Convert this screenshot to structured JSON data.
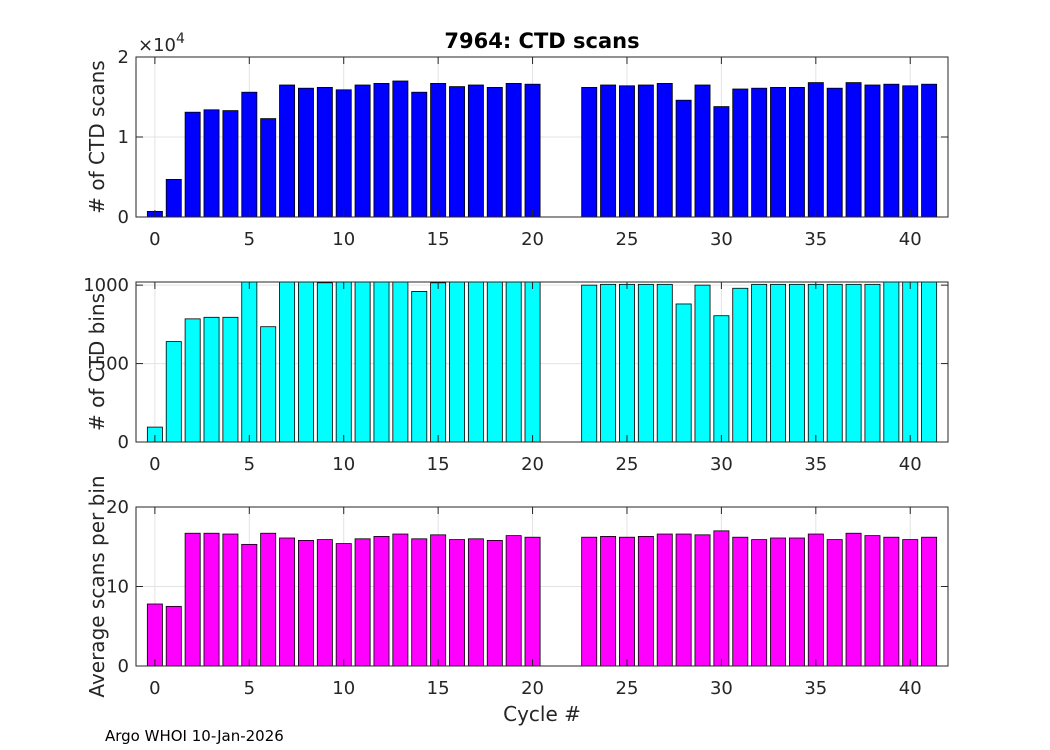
{
  "footer": "Argo WHOI 10-Jan-2026",
  "chart_data": [
    {
      "type": "bar",
      "title": "7964: CTD scans",
      "ylabel": "# of CTD scans",
      "xlabel": "",
      "color": "#0000ff",
      "exponent_label": "×10",
      "exponent_power": "4",
      "x": [
        0,
        1,
        2,
        3,
        4,
        5,
        6,
        7,
        8,
        9,
        10,
        11,
        12,
        13,
        14,
        15,
        16,
        17,
        18,
        19,
        20,
        23,
        24,
        25,
        26,
        27,
        28,
        29,
        30,
        31,
        32,
        33,
        34,
        35,
        36,
        37,
        38,
        39,
        40,
        41
      ],
      "values": [
        0.07,
        0.47,
        1.31,
        1.34,
        1.33,
        1.56,
        1.23,
        1.65,
        1.61,
        1.62,
        1.59,
        1.65,
        1.67,
        1.7,
        1.56,
        1.67,
        1.63,
        1.65,
        1.62,
        1.67,
        1.66,
        1.62,
        1.65,
        1.64,
        1.65,
        1.67,
        1.46,
        1.65,
        1.38,
        1.6,
        1.61,
        1.62,
        1.62,
        1.68,
        1.61,
        1.68,
        1.65,
        1.66,
        1.64,
        1.66
      ],
      "xlim": [
        -1,
        42
      ],
      "ylim": [
        0,
        2
      ],
      "yticks": [
        0,
        1,
        2
      ],
      "ytick_labels": [
        "0",
        "1",
        "2"
      ],
      "xticks": [
        0,
        5,
        10,
        15,
        20,
        25,
        30,
        35,
        40
      ],
      "xtick_labels": [
        "0",
        "5",
        "10",
        "15",
        "20",
        "25",
        "30",
        "35",
        "40"
      ],
      "grid": true
    },
    {
      "type": "bar",
      "title": "",
      "ylabel": "# of CTD bins",
      "xlabel": "",
      "color": "#00ffff",
      "x": [
        0,
        1,
        2,
        3,
        4,
        5,
        6,
        7,
        8,
        9,
        10,
        11,
        12,
        13,
        14,
        15,
        16,
        17,
        18,
        19,
        20,
        23,
        24,
        25,
        26,
        27,
        28,
        29,
        30,
        31,
        32,
        33,
        34,
        35,
        36,
        37,
        38,
        39,
        40,
        41
      ],
      "values": [
        95,
        640,
        785,
        795,
        795,
        1020,
        735,
        1020,
        1020,
        1015,
        1020,
        1020,
        1020,
        1020,
        960,
        1015,
        1020,
        1020,
        1020,
        1020,
        1020,
        1000,
        1005,
        1005,
        1005,
        1005,
        880,
        1000,
        805,
        980,
        1005,
        1005,
        1005,
        1005,
        1005,
        1005,
        1005,
        1020,
        1020,
        1020
      ],
      "xlim": [
        -1,
        42
      ],
      "ylim": [
        0,
        1020
      ],
      "yticks": [
        0,
        500,
        1000
      ],
      "ytick_labels": [
        "0",
        "500",
        "1000"
      ],
      "xticks": [
        0,
        5,
        10,
        15,
        20,
        25,
        30,
        35,
        40
      ],
      "xtick_labels": [
        "0",
        "5",
        "10",
        "15",
        "20",
        "25",
        "30",
        "35",
        "40"
      ],
      "grid": true
    },
    {
      "type": "bar",
      "title": "",
      "ylabel": "Average scans per bin",
      "xlabel": "Cycle #",
      "color": "#ff00ff",
      "x": [
        0,
        1,
        2,
        3,
        4,
        5,
        6,
        7,
        8,
        9,
        10,
        11,
        12,
        13,
        14,
        15,
        16,
        17,
        18,
        19,
        20,
        23,
        24,
        25,
        26,
        27,
        28,
        29,
        30,
        31,
        32,
        33,
        34,
        35,
        36,
        37,
        38,
        39,
        40,
        41
      ],
      "values": [
        7.8,
        7.5,
        16.7,
        16.7,
        16.6,
        15.3,
        16.7,
        16.1,
        15.8,
        15.9,
        15.4,
        16.0,
        16.3,
        16.6,
        16.0,
        16.5,
        15.9,
        16.0,
        15.8,
        16.4,
        16.2,
        16.2,
        16.3,
        16.2,
        16.3,
        16.6,
        16.6,
        16.5,
        17.0,
        16.2,
        15.9,
        16.1,
        16.1,
        16.6,
        15.9,
        16.7,
        16.4,
        16.2,
        15.9,
        16.2
      ],
      "xlim": [
        -1,
        42
      ],
      "ylim": [
        0,
        20
      ],
      "yticks": [
        0,
        10,
        20
      ],
      "ytick_labels": [
        "0",
        "10",
        "20"
      ],
      "xticks": [
        0,
        5,
        10,
        15,
        20,
        25,
        30,
        35,
        40
      ],
      "xtick_labels": [
        "0",
        "5",
        "10",
        "15",
        "20",
        "25",
        "30",
        "35",
        "40"
      ],
      "grid": true
    }
  ]
}
